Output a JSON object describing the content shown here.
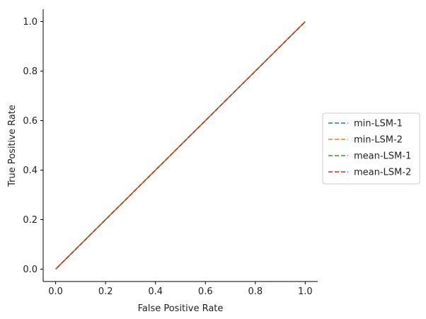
{
  "chart_data": {
    "type": "line",
    "title": "",
    "xlabel": "False Positive Rate",
    "ylabel": "True Positive Rate",
    "xlim": [
      -0.05,
      1.05
    ],
    "ylim": [
      -0.05,
      1.05
    ],
    "xticks": [
      "0.0",
      "0.2",
      "0.4",
      "0.6",
      "0.8",
      "1.0"
    ],
    "yticks": [
      "0.0",
      "0.2",
      "0.4",
      "0.6",
      "0.8",
      "1.0"
    ],
    "grid": false,
    "legend_position": "right",
    "series": [
      {
        "name": "min-LSM-1",
        "color": "#1f77b4",
        "x": [
          0.0,
          0.2,
          0.4,
          0.6,
          0.8,
          1.0
        ],
        "y": [
          0.0,
          0.2,
          0.4,
          0.6,
          0.8,
          1.0
        ]
      },
      {
        "name": "min-LSM-2",
        "color": "#ff7f0e",
        "x": [
          0.0,
          0.2,
          0.4,
          0.6,
          0.8,
          1.0
        ],
        "y": [
          0.0,
          0.2,
          0.4,
          0.6,
          0.8,
          1.0
        ]
      },
      {
        "name": "mean-LSM-1",
        "color": "#2ca02c",
        "x": [
          0.0,
          0.2,
          0.4,
          0.6,
          0.8,
          1.0
        ],
        "y": [
          0.0,
          0.2,
          0.4,
          0.6,
          0.8,
          1.0
        ]
      },
      {
        "name": "mean-LSM-2",
        "color": "#d62728",
        "x": [
          0.0,
          0.2,
          0.4,
          0.6,
          0.8,
          1.0
        ],
        "y": [
          0.0,
          0.2,
          0.4,
          0.6,
          0.8,
          1.0
        ]
      }
    ]
  }
}
